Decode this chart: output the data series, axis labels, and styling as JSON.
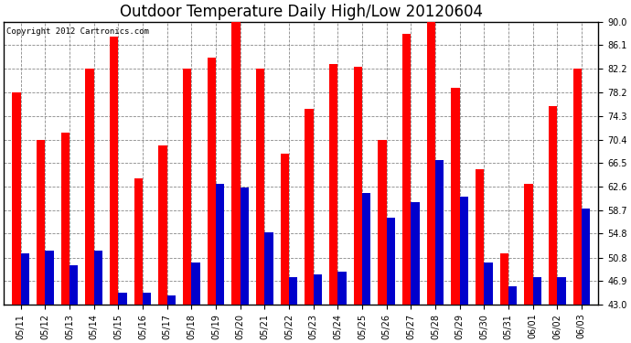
{
  "title": "Outdoor Temperature Daily High/Low 20120604",
  "copyright": "Copyright 2012 Cartronics.com",
  "y_ticks": [
    43.0,
    46.9,
    50.8,
    54.8,
    58.7,
    62.6,
    66.5,
    70.4,
    74.3,
    78.2,
    82.2,
    86.1,
    90.0
  ],
  "ylim": [
    43.0,
    90.0
  ],
  "categories": [
    "05/11",
    "05/12",
    "05/13",
    "05/14",
    "05/15",
    "05/16",
    "05/17",
    "05/18",
    "05/19",
    "05/20",
    "05/21",
    "05/22",
    "05/23",
    "05/24",
    "05/25",
    "05/26",
    "05/27",
    "05/28",
    "05/29",
    "05/30",
    "05/31",
    "06/01",
    "06/02",
    "06/03"
  ],
  "highs": [
    78.2,
    70.4,
    71.5,
    82.2,
    87.5,
    64.0,
    69.5,
    82.2,
    84.0,
    90.0,
    82.2,
    68.0,
    75.5,
    83.0,
    82.5,
    70.4,
    88.0,
    90.0,
    79.0,
    65.5,
    51.5,
    63.0,
    76.0,
    82.2
  ],
  "lows": [
    51.5,
    52.0,
    49.5,
    52.0,
    45.0,
    45.0,
    44.5,
    50.0,
    63.0,
    62.5,
    55.0,
    47.5,
    48.0,
    48.5,
    61.5,
    57.5,
    60.0,
    67.0,
    61.0,
    50.0,
    46.0,
    47.5,
    47.5,
    59.0
  ],
  "high_color": "#ff0000",
  "low_color": "#0000cc",
  "background_color": "#ffffff",
  "plot_bg_color": "#ffffff",
  "grid_color": "#888888",
  "title_fontsize": 12,
  "tick_fontsize": 7,
  "bar_width": 0.35,
  "figwidth": 6.9,
  "figheight": 3.75,
  "dpi": 100
}
